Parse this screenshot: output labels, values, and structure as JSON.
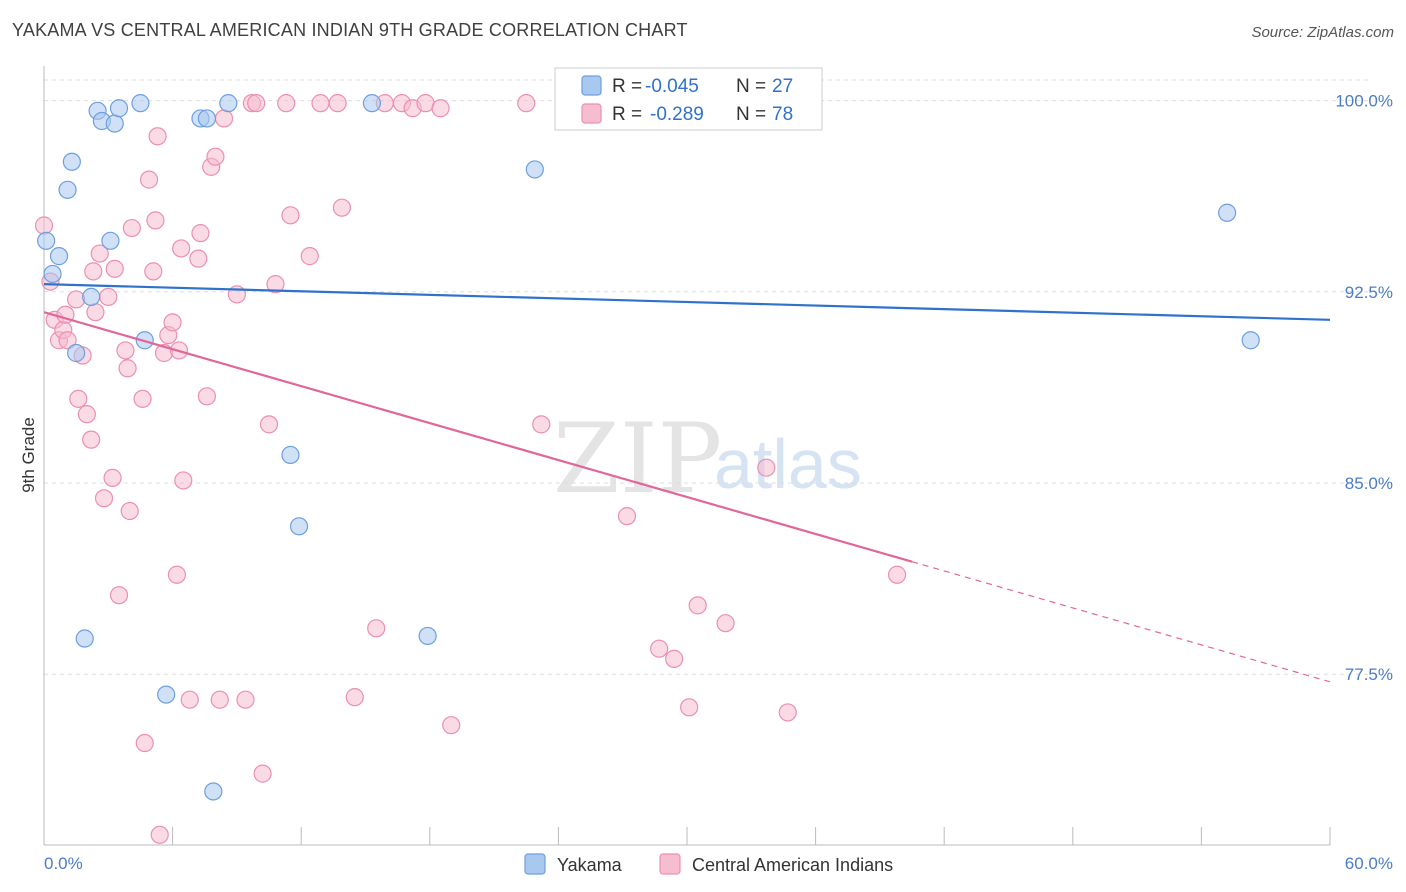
{
  "title": "YAKAMA VS CENTRAL AMERICAN INDIAN 9TH GRADE CORRELATION CHART",
  "source": "Source: ZipAtlas.com",
  "watermark": {
    "zip": "ZIP",
    "atlas": "atlas"
  },
  "colors": {
    "yakama_fill": "#a9c8f0",
    "yakama_stroke": "#6d9fe0",
    "yakama_line": "#2f72cc",
    "cai_fill": "#f6bcd0",
    "cai_stroke": "#ec8fb0",
    "cai_line": "#e0679a",
    "value_text": "#2f72cc",
    "grid": "#dddddd"
  },
  "legend": {
    "r_label": "R =",
    "n_label": "N =",
    "entries": [
      {
        "r": "-0.045",
        "n": "27"
      },
      {
        "r": "-0.289",
        "n": "78"
      }
    ]
  },
  "chart_data": {
    "type": "scatter",
    "title": "YAKAMA VS CENTRAL AMERICAN INDIAN 9TH GRADE CORRELATION CHART",
    "xlabel": "",
    "ylabel": "9th Grade",
    "xlim": [
      0,
      60
    ],
    "ylim": [
      70.8,
      101.2
    ],
    "x_tick_labels": [
      "0.0%",
      "60.0%"
    ],
    "y_ticks": [
      77.5,
      85.0,
      92.5,
      100.0
    ],
    "y_tick_labels": [
      "77.5%",
      "85.0%",
      "92.5%",
      "100.0%"
    ],
    "grid": true,
    "legend_position": "top-center",
    "series": [
      {
        "name": "Yakama",
        "trend": {
          "x": [
            0,
            60
          ],
          "y": [
            92.8,
            91.4
          ],
          "dashed_from": null
        },
        "points": [
          [
            0.1,
            94.5
          ],
          [
            0.4,
            93.2
          ],
          [
            0.7,
            93.9
          ],
          [
            1.1,
            96.5
          ],
          [
            1.3,
            97.6
          ],
          [
            1.5,
            90.1
          ],
          [
            1.9,
            78.9
          ],
          [
            2.2,
            92.3
          ],
          [
            2.5,
            99.6
          ],
          [
            2.7,
            99.2
          ],
          [
            3.1,
            94.5
          ],
          [
            3.3,
            99.1
          ],
          [
            3.5,
            99.7
          ],
          [
            4.5,
            99.9
          ],
          [
            4.7,
            90.6
          ],
          [
            5.7,
            76.7
          ],
          [
            7.3,
            99.3
          ],
          [
            7.6,
            99.3
          ],
          [
            7.9,
            72.9
          ],
          [
            8.6,
            99.9
          ],
          [
            11.5,
            86.1
          ],
          [
            11.9,
            83.3
          ],
          [
            15.3,
            99.9
          ],
          [
            17.9,
            79.0
          ],
          [
            22.9,
            97.3
          ],
          [
            55.2,
            95.6
          ],
          [
            56.3,
            90.6
          ]
        ]
      },
      {
        "name": "Central American Indians",
        "trend": {
          "x": [
            0,
            60
          ],
          "y": [
            91.7,
            77.2
          ],
          "dashed_from": 40.5
        },
        "points": [
          [
            0.0,
            95.1
          ],
          [
            0.3,
            92.9
          ],
          [
            0.5,
            91.4
          ],
          [
            0.7,
            90.6
          ],
          [
            0.9,
            91.0
          ],
          [
            1.0,
            91.6
          ],
          [
            1.1,
            90.6
          ],
          [
            1.5,
            92.2
          ],
          [
            1.6,
            88.3
          ],
          [
            1.8,
            90.0
          ],
          [
            2.0,
            87.7
          ],
          [
            2.2,
            86.7
          ],
          [
            2.3,
            93.3
          ],
          [
            2.4,
            91.7
          ],
          [
            2.6,
            94.0
          ],
          [
            2.8,
            84.4
          ],
          [
            3.0,
            92.3
          ],
          [
            3.2,
            85.2
          ],
          [
            3.3,
            93.4
          ],
          [
            3.5,
            80.6
          ],
          [
            3.8,
            90.2
          ],
          [
            3.9,
            89.5
          ],
          [
            4.0,
            83.9
          ],
          [
            4.1,
            95.0
          ],
          [
            4.6,
            88.3
          ],
          [
            4.7,
            74.8
          ],
          [
            4.9,
            96.9
          ],
          [
            5.1,
            93.3
          ],
          [
            5.2,
            95.3
          ],
          [
            5.3,
            98.6
          ],
          [
            5.4,
            71.2
          ],
          [
            5.6,
            90.1
          ],
          [
            5.8,
            90.8
          ],
          [
            6.0,
            91.3
          ],
          [
            6.2,
            81.4
          ],
          [
            6.3,
            90.2
          ],
          [
            6.4,
            94.2
          ],
          [
            6.5,
            85.1
          ],
          [
            6.8,
            76.5
          ],
          [
            7.2,
            93.8
          ],
          [
            7.3,
            94.8
          ],
          [
            7.6,
            88.4
          ],
          [
            7.8,
            97.4
          ],
          [
            8.0,
            97.8
          ],
          [
            8.2,
            76.5
          ],
          [
            8.4,
            99.3
          ],
          [
            9.0,
            92.4
          ],
          [
            9.4,
            76.5
          ],
          [
            9.7,
            99.9
          ],
          [
            9.9,
            99.9
          ],
          [
            10.2,
            73.6
          ],
          [
            10.5,
            87.3
          ],
          [
            10.8,
            92.8
          ],
          [
            11.3,
            99.9
          ],
          [
            11.5,
            95.5
          ],
          [
            12.4,
            93.9
          ],
          [
            12.9,
            99.9
          ],
          [
            13.7,
            99.9
          ],
          [
            13.9,
            95.8
          ],
          [
            14.5,
            76.6
          ],
          [
            15.5,
            79.3
          ],
          [
            15.9,
            99.9
          ],
          [
            16.7,
            99.9
          ],
          [
            17.2,
            99.7
          ],
          [
            17.8,
            99.9
          ],
          [
            18.5,
            99.7
          ],
          [
            19.0,
            75.5
          ],
          [
            22.5,
            99.9
          ],
          [
            23.2,
            87.3
          ],
          [
            27.2,
            83.7
          ],
          [
            28.7,
            78.5
          ],
          [
            29.4,
            78.1
          ],
          [
            30.1,
            76.2
          ],
          [
            30.5,
            80.2
          ],
          [
            31.8,
            79.5
          ],
          [
            33.7,
            85.6
          ],
          [
            34.7,
            76.0
          ],
          [
            39.8,
            81.4
          ]
        ]
      }
    ]
  },
  "bottom_legend": [
    "Yakama",
    "Central American Indians"
  ]
}
